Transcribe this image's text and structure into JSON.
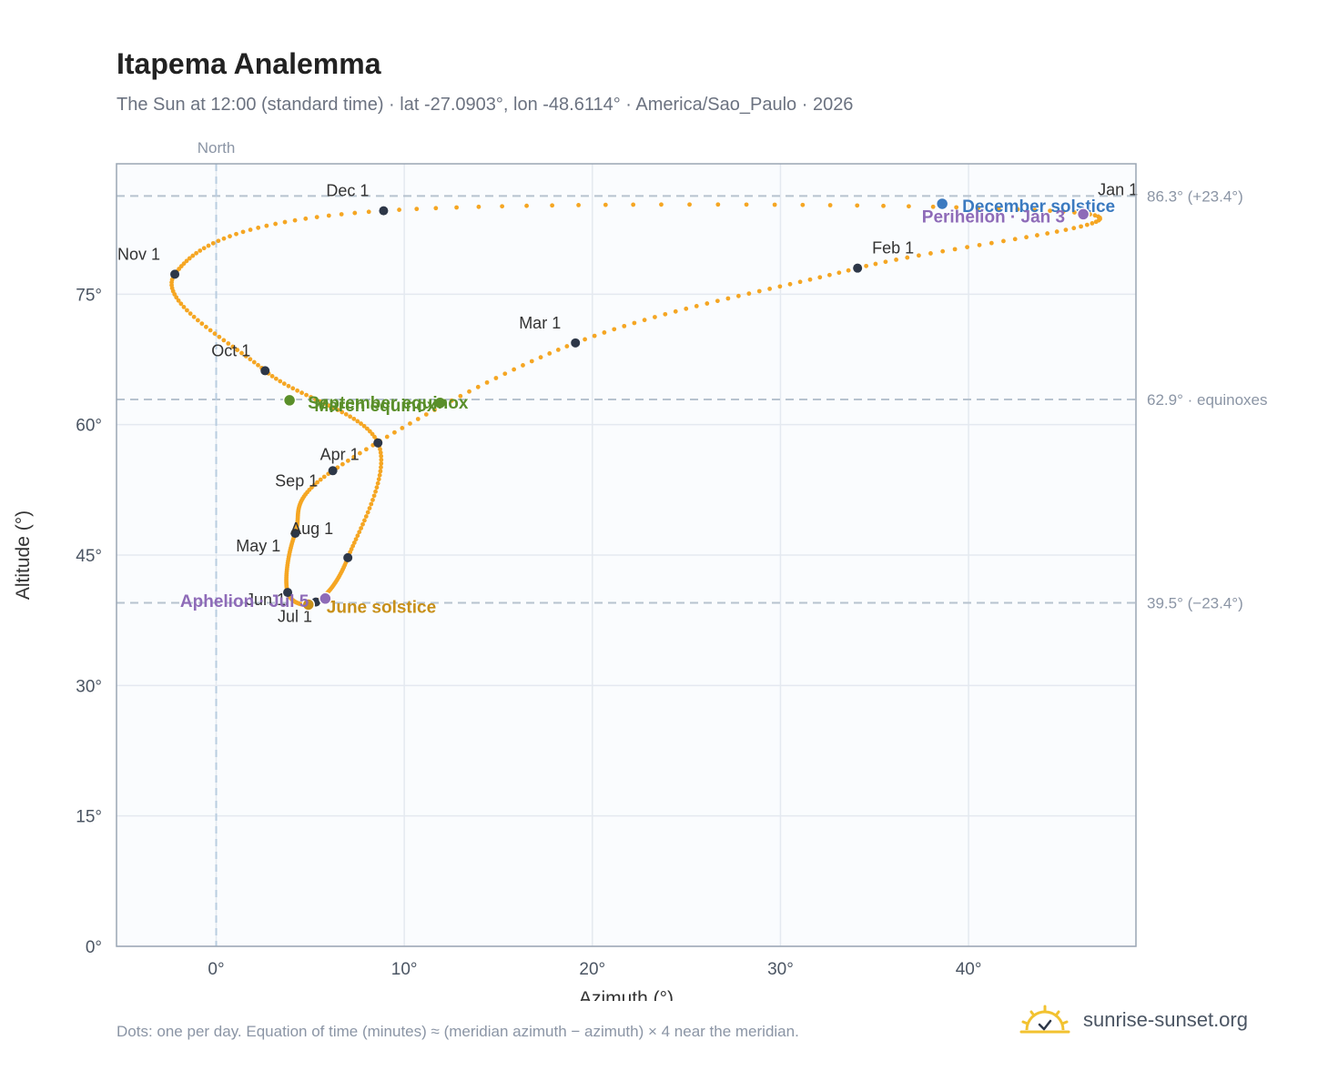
{
  "title": "Itapema Analemma",
  "subtitle": "The Sun at 12:00 (standard time) · lat -27.0903°, lon -48.6114° · America/Sao_Paulo · 2026",
  "footnote": "Dots: one per day. Equation of time (minutes) ≈ (meridian azimuth − azimuth) × 4 near the meridian.",
  "brand": "sunrise-sunset.org",
  "colors": {
    "curve": "#f5a623",
    "month_dot": "#2d3748",
    "december_solstice": "#3b7ac0",
    "june_solstice": "#c8901a",
    "equinox": "#5a8f2a",
    "apsis": "#8e6bb8",
    "plot_bg": "#fafcfe",
    "grid": "#e4e9f0",
    "reference_line": "#b7c3cf"
  },
  "chart_data": {
    "type": "scatter",
    "xlabel": "Azimuth (°)",
    "ylabel": "Altitude (°)",
    "xlim": [
      -5.3,
      48.9
    ],
    "ylim": [
      0,
      90
    ],
    "x_ticks": [
      0,
      10,
      20,
      30,
      40
    ],
    "x_tick_labels": [
      "0°",
      "10°",
      "20°",
      "30°",
      "40°"
    ],
    "y_ticks": [
      0,
      15,
      30,
      45,
      60,
      75
    ],
    "y_tick_labels": [
      "0°",
      "15°",
      "30°",
      "45°",
      "60°",
      "75°"
    ],
    "grid": true,
    "north_line": {
      "x": 0,
      "label": "North"
    },
    "reference_lines": [
      {
        "y": 86.3,
        "label": "86.3° (+23.4°)"
      },
      {
        "y": 62.9,
        "label": "62.9° · equinoxes"
      },
      {
        "y": 39.5,
        "label": "39.5° (−23.4°)"
      }
    ],
    "month_points": [
      {
        "label": "Jan 1",
        "x": 46.1,
        "y": 84.3
      },
      {
        "label": "Feb 1",
        "x": 34.1,
        "y": 78.0
      },
      {
        "label": "Mar 1",
        "x": 19.1,
        "y": 69.4
      },
      {
        "label": "Apr 1",
        "x": 6.2,
        "y": 54.7
      },
      {
        "label": "May 1",
        "x": 4.2,
        "y": 47.5
      },
      {
        "label": "Jun 1",
        "x": 3.8,
        "y": 40.7
      },
      {
        "label": "Jul 1",
        "x": 5.3,
        "y": 39.6
      },
      {
        "label": "Aug 1",
        "x": 7.0,
        "y": 44.7
      },
      {
        "label": "Sep 1",
        "x": 8.6,
        "y": 57.9
      },
      {
        "label": "Oct 1",
        "x": 2.6,
        "y": 66.2
      },
      {
        "label": "Nov 1",
        "x": -2.2,
        "y": 77.3
      },
      {
        "label": "Dec 1",
        "x": 8.9,
        "y": 84.6
      }
    ],
    "events": [
      {
        "label": "December solstice",
        "x": 38.6,
        "y": 85.4,
        "kind": "december_solstice"
      },
      {
        "label": "Perihelion · Jan 3",
        "x": 46.1,
        "y": 84.2,
        "kind": "apsis"
      },
      {
        "label": "March equinox",
        "x": 11.9,
        "y": 62.5,
        "kind": "equinox"
      },
      {
        "label": "September equinox",
        "x": 3.9,
        "y": 62.8,
        "kind": "equinox"
      },
      {
        "label": "June solstice",
        "x": 4.9,
        "y": 39.3,
        "kind": "june_solstice"
      },
      {
        "label": "Aphelion · Jul 5",
        "x": 5.8,
        "y": 40.0,
        "kind": "apsis"
      }
    ]
  }
}
